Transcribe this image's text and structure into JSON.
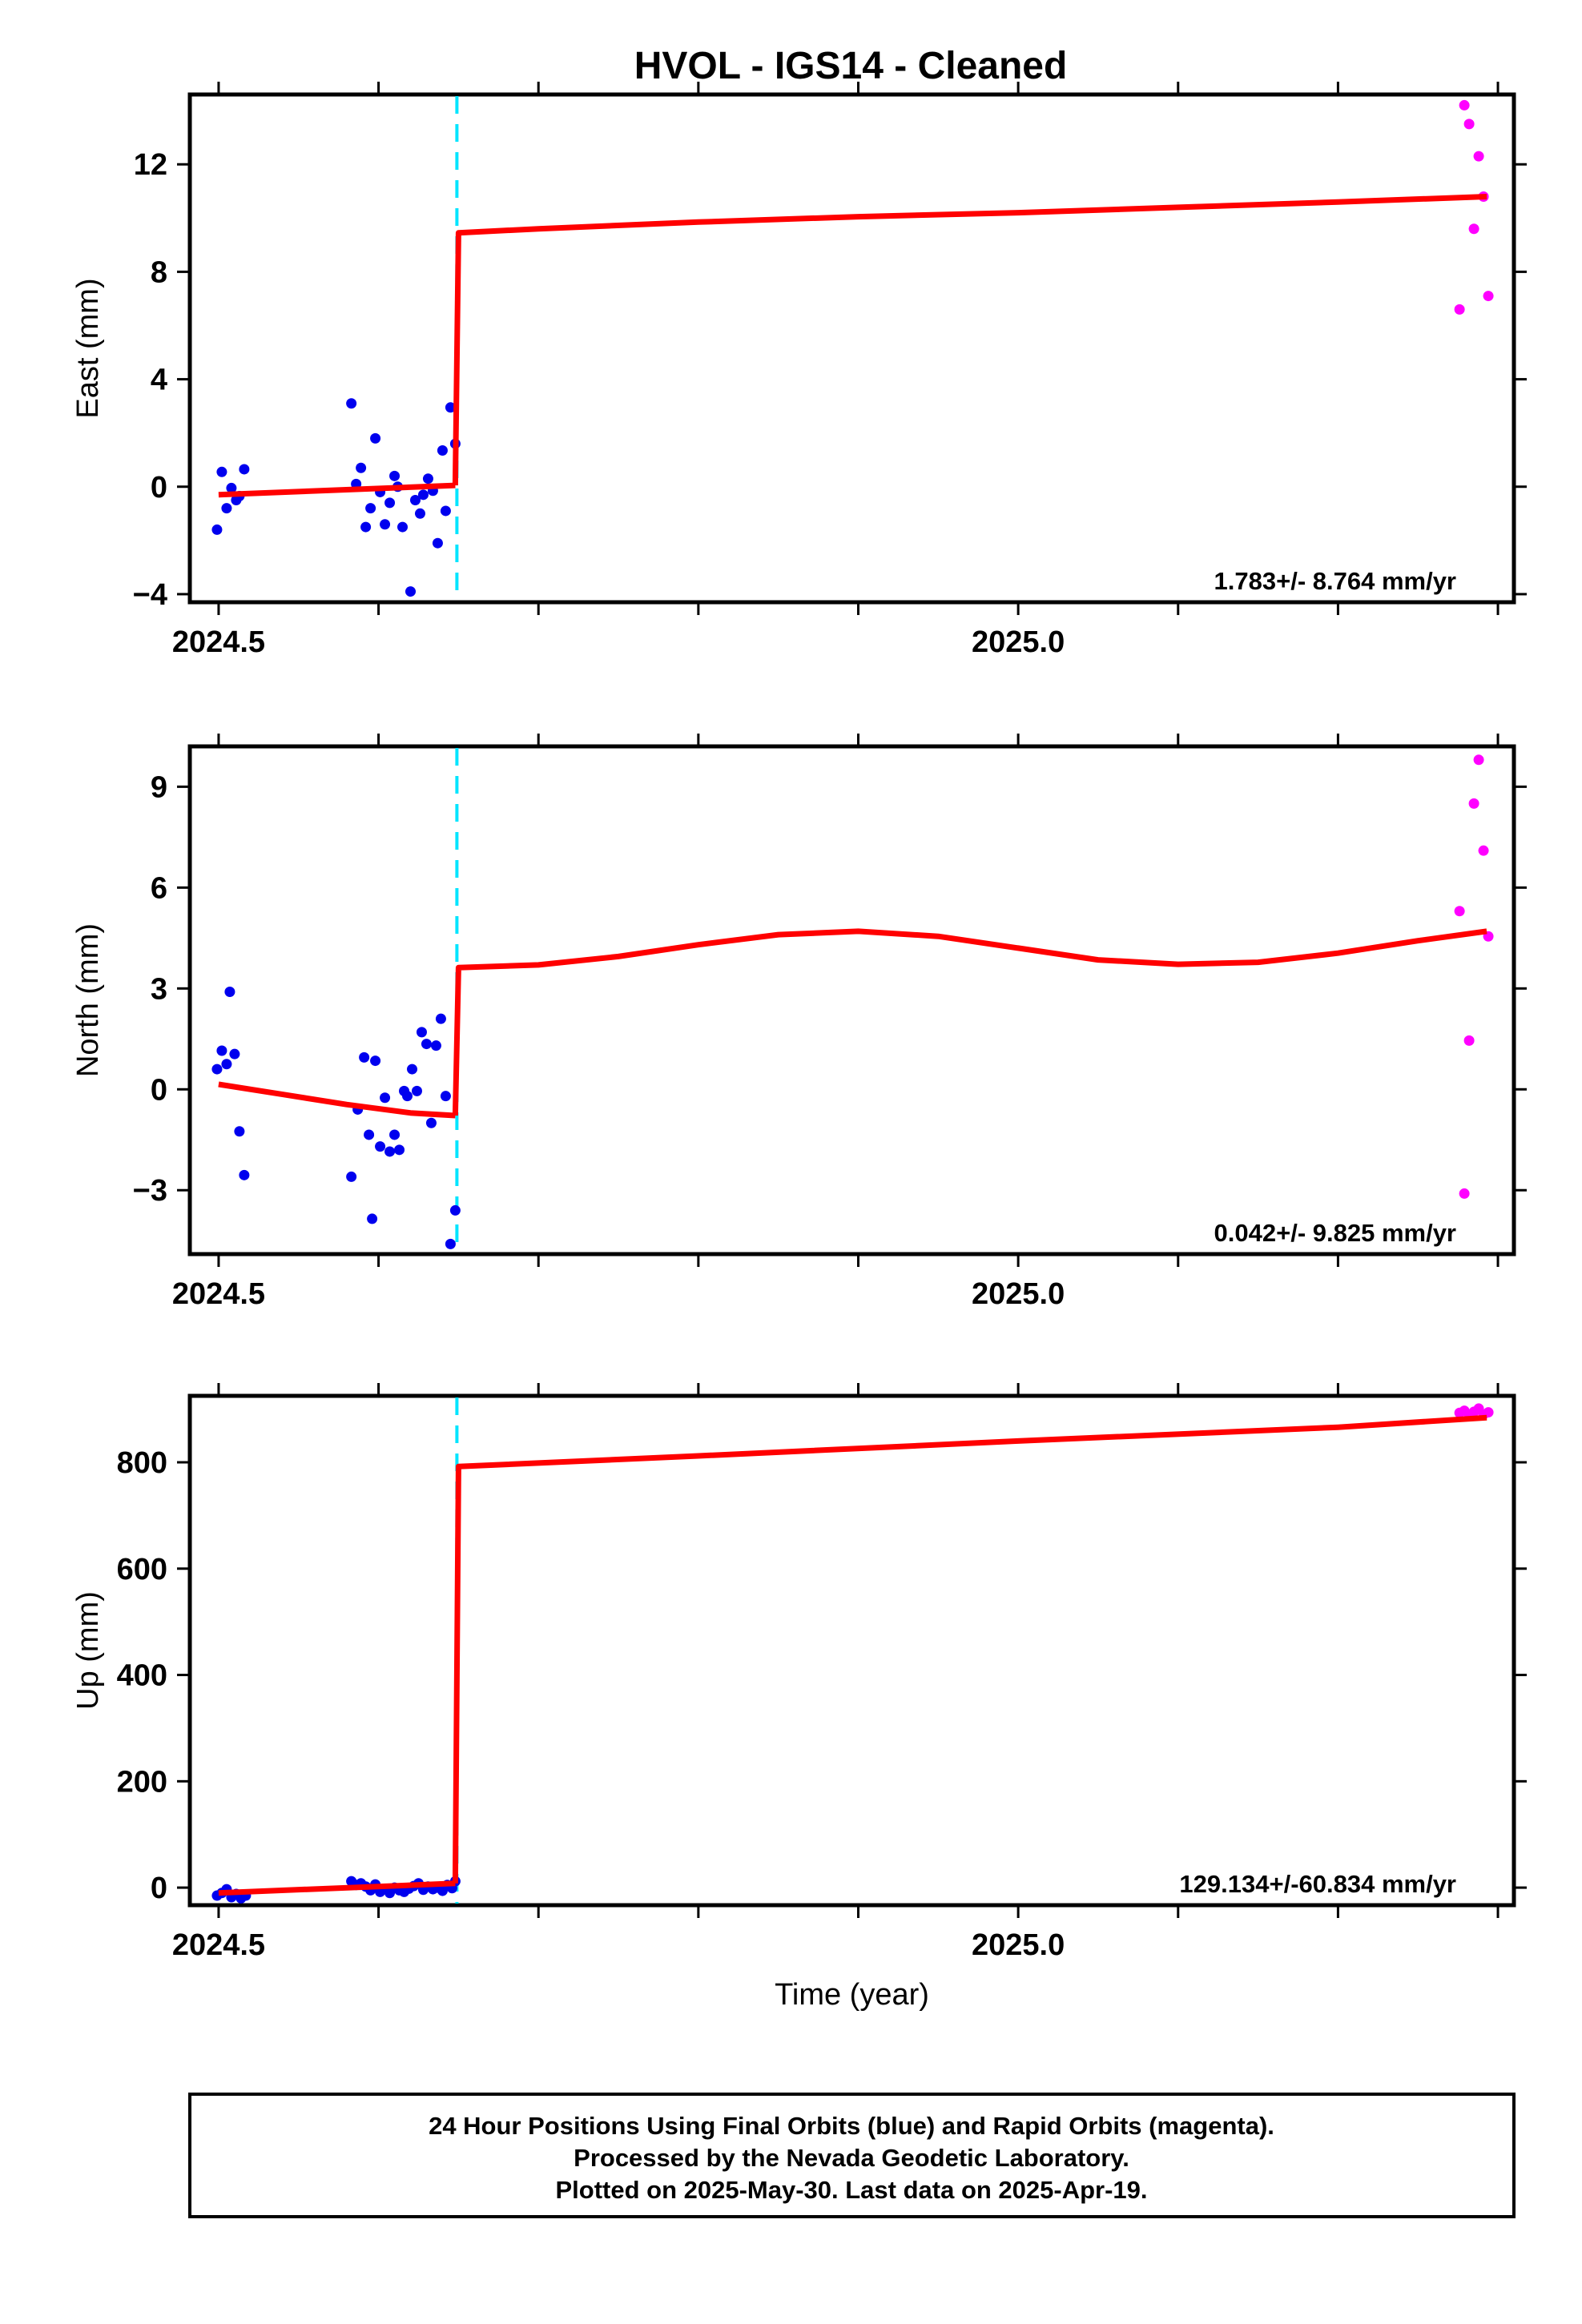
{
  "title": "HVOL  - IGS14 - Cleaned",
  "colors": {
    "final": "#0000ee",
    "rapid": "#ff00ff",
    "model": "#ff0000",
    "event": "#00e5ff"
  },
  "footer": {
    "line1": "24 Hour Positions Using Final Orbits (blue) and Rapid Orbits (magenta).",
    "line2": "Processed by the Nevada Geodetic Laboratory.",
    "line3": "Plotted on 2025-May-30. Last data on 2025-Apr-19."
  },
  "chart_data": [
    {
      "type": "scatter",
      "ylabel": "East (mm)",
      "xlabel": "",
      "xlim": [
        2024.482,
        2025.31
      ],
      "ylim": [
        -4.3,
        14.6
      ],
      "x_ticks": [
        2024.5,
        2025.0
      ],
      "x_tick_labels": [
        "2024.5",
        "2025.0"
      ],
      "y_ticks": [
        -4,
        0,
        4,
        8,
        12
      ],
      "y_tick_labels": [
        "−4",
        "0",
        "4",
        "8",
        "12"
      ],
      "event_x": 2024.649,
      "rate_label": "1.783+/- 8.764 mm/yr",
      "final_points": [
        [
          2024.499,
          -1.6
        ],
        [
          2024.502,
          0.55
        ],
        [
          2024.505,
          -0.8
        ],
        [
          2024.508,
          -0.05
        ],
        [
          2024.511,
          -0.5
        ],
        [
          2024.513,
          -0.35
        ],
        [
          2024.516,
          0.65
        ],
        [
          2024.583,
          3.1
        ],
        [
          2024.586,
          0.1
        ],
        [
          2024.589,
          0.7
        ],
        [
          2024.592,
          -1.5
        ],
        [
          2024.595,
          -0.8
        ],
        [
          2024.598,
          1.8
        ],
        [
          2024.601,
          -0.2
        ],
        [
          2024.604,
          -1.4
        ],
        [
          2024.607,
          -0.6
        ],
        [
          2024.61,
          0.4
        ],
        [
          2024.612,
          0.0
        ],
        [
          2024.615,
          -1.5
        ],
        [
          2024.62,
          -3.9
        ],
        [
          2024.623,
          -0.5
        ],
        [
          2024.626,
          -1.0
        ],
        [
          2024.628,
          -0.3
        ],
        [
          2024.631,
          0.3
        ],
        [
          2024.634,
          -0.15
        ],
        [
          2024.637,
          -2.1
        ],
        [
          2024.64,
          1.35
        ],
        [
          2024.642,
          -0.9
        ],
        [
          2024.645,
          2.95
        ],
        [
          2024.648,
          1.6
        ]
      ],
      "rapid_points": [
        [
          2025.276,
          6.6
        ],
        [
          2025.279,
          14.2
        ],
        [
          2025.282,
          13.5
        ],
        [
          2025.285,
          9.6
        ],
        [
          2025.288,
          12.3
        ],
        [
          2025.291,
          10.8
        ],
        [
          2025.294,
          7.1
        ]
      ],
      "model_segments": [
        [
          [
            2024.5,
            -0.3
          ],
          [
            2024.648,
            0.05
          ]
        ],
        [
          [
            2024.648,
            0.05
          ],
          [
            2024.65,
            9.45
          ],
          [
            2024.7,
            9.6
          ],
          [
            2024.8,
            9.85
          ],
          [
            2024.9,
            10.05
          ],
          [
            2025.0,
            10.2
          ],
          [
            2025.1,
            10.4
          ],
          [
            2025.2,
            10.6
          ],
          [
            2025.293,
            10.8
          ]
        ]
      ]
    },
    {
      "type": "scatter",
      "ylabel": "North (mm)",
      "xlabel": "",
      "xlim": [
        2024.482,
        2025.31
      ],
      "ylim": [
        -4.9,
        10.2
      ],
      "x_ticks": [
        2024.5,
        2025.0
      ],
      "x_tick_labels": [
        "2024.5",
        "2025.0"
      ],
      "y_ticks": [
        -3,
        0,
        3,
        6,
        9
      ],
      "y_tick_labels": [
        "−3",
        "0",
        "3",
        "6",
        "9"
      ],
      "event_x": 2024.649,
      "rate_label": "0.042+/- 9.825 mm/yr",
      "final_points": [
        [
          2024.499,
          0.6
        ],
        [
          2024.502,
          1.15
        ],
        [
          2024.505,
          0.75
        ],
        [
          2024.507,
          2.9
        ],
        [
          2024.51,
          1.05
        ],
        [
          2024.513,
          -1.25
        ],
        [
          2024.516,
          -2.55
        ],
        [
          2024.583,
          -2.6
        ],
        [
          2024.587,
          -0.6
        ],
        [
          2024.591,
          0.95
        ],
        [
          2024.594,
          -1.35
        ],
        [
          2024.596,
          -3.85
        ],
        [
          2024.598,
          0.85
        ],
        [
          2024.601,
          -1.7
        ],
        [
          2024.604,
          -0.25
        ],
        [
          2024.607,
          -1.85
        ],
        [
          2024.61,
          -1.35
        ],
        [
          2024.613,
          -1.8
        ],
        [
          2024.616,
          -0.05
        ],
        [
          2024.618,
          -0.2
        ],
        [
          2024.621,
          0.6
        ],
        [
          2024.624,
          -0.05
        ],
        [
          2024.627,
          1.7
        ],
        [
          2024.63,
          1.35
        ],
        [
          2024.633,
          -1.0
        ],
        [
          2024.636,
          1.3
        ],
        [
          2024.639,
          2.1
        ],
        [
          2024.642,
          -0.2
        ],
        [
          2024.645,
          -4.6
        ],
        [
          2024.648,
          -3.6
        ]
      ],
      "rapid_points": [
        [
          2025.276,
          5.3
        ],
        [
          2025.279,
          -3.1
        ],
        [
          2025.282,
          1.45
        ],
        [
          2025.285,
          8.5
        ],
        [
          2025.288,
          9.8
        ],
        [
          2025.291,
          7.1
        ],
        [
          2025.294,
          4.55
        ]
      ],
      "model_segments": [
        [
          [
            2024.5,
            0.15
          ],
          [
            2024.54,
            -0.15
          ],
          [
            2024.58,
            -0.45
          ],
          [
            2024.62,
            -0.7
          ],
          [
            2024.648,
            -0.78
          ]
        ],
        [
          [
            2024.648,
            -0.78
          ],
          [
            2024.65,
            3.62
          ],
          [
            2024.7,
            3.7
          ],
          [
            2024.75,
            3.95
          ],
          [
            2024.8,
            4.3
          ],
          [
            2024.85,
            4.6
          ],
          [
            2024.9,
            4.7
          ],
          [
            2024.95,
            4.55
          ],
          [
            2025.0,
            4.2
          ],
          [
            2025.05,
            3.85
          ],
          [
            2025.1,
            3.72
          ],
          [
            2025.15,
            3.78
          ],
          [
            2025.2,
            4.05
          ],
          [
            2025.25,
            4.42
          ],
          [
            2025.293,
            4.7
          ]
        ]
      ]
    },
    {
      "type": "scatter",
      "ylabel": "Up (mm)",
      "xlabel": "Time (year)",
      "xlim": [
        2024.482,
        2025.31
      ],
      "ylim": [
        -33,
        925
      ],
      "x_ticks": [
        2024.5,
        2025.0
      ],
      "x_tick_labels": [
        "2024.5",
        "2025.0"
      ],
      "y_ticks": [
        0,
        200,
        400,
        600,
        800
      ],
      "y_tick_labels": [
        "0",
        "200",
        "400",
        "600",
        "800"
      ],
      "event_x": 2024.649,
      "rate_label": "129.134+/-60.834 mm/yr",
      "final_points": [
        [
          2024.499,
          -15
        ],
        [
          2024.502,
          -10
        ],
        [
          2024.505,
          -3
        ],
        [
          2024.508,
          -18
        ],
        [
          2024.511,
          -12
        ],
        [
          2024.514,
          -20
        ],
        [
          2024.517,
          -15
        ],
        [
          2024.583,
          12
        ],
        [
          2024.586,
          5
        ],
        [
          2024.589,
          8
        ],
        [
          2024.592,
          2
        ],
        [
          2024.595,
          -5
        ],
        [
          2024.598,
          6
        ],
        [
          2024.601,
          -8
        ],
        [
          2024.604,
          -3
        ],
        [
          2024.607,
          -10
        ],
        [
          2024.61,
          0
        ],
        [
          2024.613,
          -5
        ],
        [
          2024.616,
          -8
        ],
        [
          2024.619,
          -2
        ],
        [
          2024.622,
          3
        ],
        [
          2024.625,
          8
        ],
        [
          2024.628,
          -4
        ],
        [
          2024.631,
          2
        ],
        [
          2024.634,
          -3
        ],
        [
          2024.637,
          0
        ],
        [
          2024.64,
          -6
        ],
        [
          2024.643,
          5
        ],
        [
          2024.646,
          -1
        ],
        [
          2024.648,
          12
        ]
      ],
      "rapid_points": [
        [
          2025.276,
          893
        ],
        [
          2025.279,
          897
        ],
        [
          2025.282,
          888
        ],
        [
          2025.285,
          895
        ],
        [
          2025.288,
          901
        ],
        [
          2025.291,
          890
        ],
        [
          2025.294,
          894
        ]
      ],
      "model_segments": [
        [
          [
            2024.5,
            -10
          ],
          [
            2024.648,
            8
          ]
        ],
        [
          [
            2024.648,
            8
          ],
          [
            2024.65,
            792
          ],
          [
            2024.8,
            812
          ],
          [
            2025.0,
            840
          ],
          [
            2025.2,
            866
          ],
          [
            2025.293,
            884
          ]
        ]
      ]
    }
  ]
}
